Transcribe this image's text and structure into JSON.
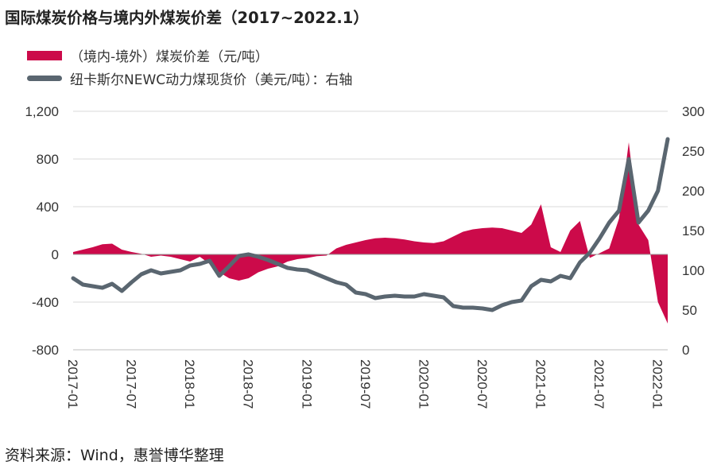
{
  "title": "国际煤炭价格与境内外煤炭价差（2017~2022.1）",
  "legend": {
    "bar_label": "（境内-境外）煤炭价差（元/吨）",
    "line_label": "纽卡斯尔NEWC动力煤现货价（美元/吨）：右轴"
  },
  "source": "资料来源：Wind，惠誉博华整理",
  "colors": {
    "bar": "#cc0a4a",
    "line": "#5a6670",
    "grid": "#d9d9d9"
  },
  "chart_data": {
    "type": "bar+line",
    "title": "国际煤炭价格与境内外煤炭价差（2017~2022.1）",
    "y_left": {
      "ticks": [
        "1,200",
        "800",
        "400",
        "0",
        "-400",
        "-800"
      ],
      "range": [
        -800,
        1200
      ]
    },
    "y_right": {
      "ticks": [
        "300",
        "250",
        "200",
        "150",
        "100",
        "50",
        "0"
      ],
      "range": [
        0,
        300
      ]
    },
    "x_ticks": [
      "2017-01",
      "2017-07",
      "2018-01",
      "2018-07",
      "2019-01",
      "2019-07",
      "2020-01",
      "2020-07",
      "2021-01",
      "2021-07",
      "2022-01"
    ],
    "x_range": [
      "2017-01",
      "2022-02"
    ],
    "series": [
      {
        "name": "（境内-境外）煤炭价差（元/吨）",
        "axis": "left",
        "kind": "area",
        "points": [
          [
            "2017-01",
            20
          ],
          [
            "2017-02",
            40
          ],
          [
            "2017-03",
            60
          ],
          [
            "2017-04",
            85
          ],
          [
            "2017-05",
            90
          ],
          [
            "2017-06",
            40
          ],
          [
            "2017-07",
            20
          ],
          [
            "2017-08",
            5
          ],
          [
            "2017-09",
            -20
          ],
          [
            "2017-10",
            -10
          ],
          [
            "2017-11",
            -20
          ],
          [
            "2017-12",
            -40
          ],
          [
            "2018-01",
            -60
          ],
          [
            "2018-02",
            -20
          ],
          [
            "2018-03",
            -80
          ],
          [
            "2018-04",
            -150
          ],
          [
            "2018-05",
            -200
          ],
          [
            "2018-06",
            -220
          ],
          [
            "2018-07",
            -200
          ],
          [
            "2018-08",
            -150
          ],
          [
            "2018-09",
            -120
          ],
          [
            "2018-10",
            -100
          ],
          [
            "2018-11",
            -60
          ],
          [
            "2018-12",
            -40
          ],
          [
            "2019-01",
            -30
          ],
          [
            "2019-02",
            -15
          ],
          [
            "2019-03",
            -10
          ],
          [
            "2019-04",
            50
          ],
          [
            "2019-05",
            80
          ],
          [
            "2019-06",
            100
          ],
          [
            "2019-07",
            120
          ],
          [
            "2019-08",
            135
          ],
          [
            "2019-09",
            140
          ],
          [
            "2019-10",
            135
          ],
          [
            "2019-11",
            125
          ],
          [
            "2019-12",
            110
          ],
          [
            "2020-01",
            100
          ],
          [
            "2020-02",
            95
          ],
          [
            "2020-03",
            110
          ],
          [
            "2020-04",
            150
          ],
          [
            "2020-05",
            190
          ],
          [
            "2020-06",
            210
          ],
          [
            "2020-07",
            220
          ],
          [
            "2020-08",
            225
          ],
          [
            "2020-09",
            220
          ],
          [
            "2020-10",
            200
          ],
          [
            "2020-11",
            180
          ],
          [
            "2020-12",
            250
          ],
          [
            "2021-01",
            420
          ],
          [
            "2021-02",
            60
          ],
          [
            "2021-03",
            20
          ],
          [
            "2021-04",
            200
          ],
          [
            "2021-05",
            280
          ],
          [
            "2021-06",
            -30
          ],
          [
            "2021-07",
            10
          ],
          [
            "2021-08",
            50
          ],
          [
            "2021-09",
            300
          ],
          [
            "2021-10",
            940
          ],
          [
            "2021-11",
            250
          ],
          [
            "2021-12",
            120
          ],
          [
            "2022-01",
            -400
          ],
          [
            "2022-02",
            -580
          ]
        ]
      },
      {
        "name": "纽卡斯尔NEWC动力煤现货价（美元/吨）：右轴",
        "axis": "right",
        "kind": "line",
        "points": [
          [
            "2017-01",
            90
          ],
          [
            "2017-02",
            82
          ],
          [
            "2017-03",
            80
          ],
          [
            "2017-04",
            78
          ],
          [
            "2017-05",
            83
          ],
          [
            "2017-06",
            74
          ],
          [
            "2017-07",
            85
          ],
          [
            "2017-08",
            95
          ],
          [
            "2017-09",
            100
          ],
          [
            "2017-10",
            96
          ],
          [
            "2017-11",
            98
          ],
          [
            "2017-12",
            100
          ],
          [
            "2018-01",
            106
          ],
          [
            "2018-02",
            108
          ],
          [
            "2018-03",
            112
          ],
          [
            "2018-04",
            93
          ],
          [
            "2018-05",
            105
          ],
          [
            "2018-06",
            118
          ],
          [
            "2018-07",
            120
          ],
          [
            "2018-08",
            117
          ],
          [
            "2018-09",
            113
          ],
          [
            "2018-10",
            108
          ],
          [
            "2018-11",
            103
          ],
          [
            "2018-12",
            101
          ],
          [
            "2019-01",
            100
          ],
          [
            "2019-02",
            95
          ],
          [
            "2019-03",
            90
          ],
          [
            "2019-04",
            85
          ],
          [
            "2019-05",
            82
          ],
          [
            "2019-06",
            72
          ],
          [
            "2019-07",
            70
          ],
          [
            "2019-08",
            65
          ],
          [
            "2019-09",
            67
          ],
          [
            "2019-10",
            68
          ],
          [
            "2019-11",
            67
          ],
          [
            "2019-12",
            67
          ],
          [
            "2020-01",
            70
          ],
          [
            "2020-02",
            68
          ],
          [
            "2020-03",
            66
          ],
          [
            "2020-04",
            55
          ],
          [
            "2020-05",
            53
          ],
          [
            "2020-06",
            53
          ],
          [
            "2020-07",
            52
          ],
          [
            "2020-08",
            50
          ],
          [
            "2020-09",
            56
          ],
          [
            "2020-10",
            60
          ],
          [
            "2020-11",
            62
          ],
          [
            "2020-12",
            80
          ],
          [
            "2021-01",
            88
          ],
          [
            "2021-02",
            86
          ],
          [
            "2021-03",
            93
          ],
          [
            "2021-04",
            90
          ],
          [
            "2021-05",
            110
          ],
          [
            "2021-06",
            122
          ],
          [
            "2021-07",
            140
          ],
          [
            "2021-08",
            160
          ],
          [
            "2021-09",
            175
          ],
          [
            "2021-10",
            240
          ],
          [
            "2021-11",
            160
          ],
          [
            "2021-12",
            175
          ],
          [
            "2022-01",
            200
          ],
          [
            "2022-02",
            265
          ]
        ]
      }
    ]
  }
}
